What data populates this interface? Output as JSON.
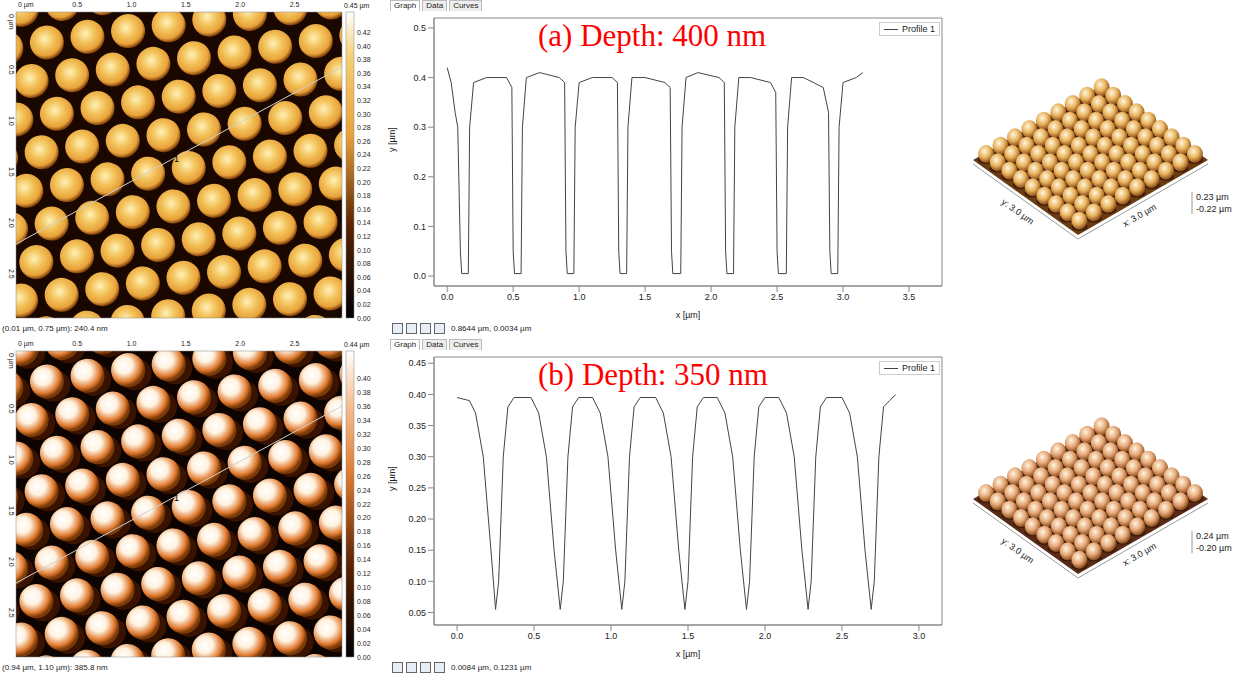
{
  "chart_data": [
    {
      "type": "line",
      "title": "(a) Depth: 400 nm",
      "x_label": "x [µm]",
      "y_label": "y [µm]",
      "legend": "top right",
      "xlim": [
        -0.1,
        3.75
      ],
      "xticks": [
        {
          "value": 0,
          "label": "0.0"
        },
        0.5,
        {
          "value": 1,
          "label": "1.0"
        },
        1.5,
        {
          "value": 2,
          "label": "2.0"
        },
        2.5,
        {
          "value": 3,
          "label": "3.0"
        },
        3.5
      ],
      "ylim": [
        -0.02,
        0.52
      ],
      "yticks": [
        {
          "value": 0,
          "label": "0.0"
        },
        0.1,
        0.2,
        0.3,
        0.4,
        0.5
      ],
      "x": [
        0,
        0.03,
        0.06,
        0.08,
        0.1,
        0.11,
        0.16,
        0.17,
        0.2,
        0.3,
        0.45,
        0.49,
        0.5,
        0.51,
        0.56,
        0.57,
        0.6,
        0.7,
        0.85,
        0.89,
        0.9,
        0.91,
        0.96,
        0.97,
        1.0,
        1.1,
        1.25,
        1.29,
        1.3,
        1.31,
        1.36,
        1.37,
        1.4,
        1.5,
        1.65,
        1.69,
        1.7,
        1.71,
        1.77,
        1.78,
        1.81,
        1.9,
        2.06,
        2.1,
        2.11,
        2.12,
        2.17,
        2.18,
        2.21,
        2.3,
        2.45,
        2.49,
        2.5,
        2.51,
        2.57,
        2.58,
        2.61,
        2.7,
        2.85,
        2.89,
        2.9,
        2.91,
        2.96,
        2.97,
        3.0,
        3.1,
        3.15
      ],
      "series": [
        {
          "name": "Profile 1",
          "color": "#444444",
          "values": [
            0.42,
            0.39,
            0.33,
            0.3,
            0.05,
            0.005,
            0.005,
            0.3,
            0.39,
            0.4,
            0.4,
            0.38,
            0.05,
            0.005,
            0.005,
            0.3,
            0.4,
            0.41,
            0.4,
            0.39,
            0.05,
            0.005,
            0.005,
            0.3,
            0.39,
            0.4,
            0.4,
            0.39,
            0.05,
            0.005,
            0.005,
            0.3,
            0.4,
            0.4,
            0.39,
            0.38,
            0.05,
            0.005,
            0.005,
            0.3,
            0.4,
            0.41,
            0.4,
            0.39,
            0.05,
            0.005,
            0.005,
            0.3,
            0.4,
            0.4,
            0.39,
            0.37,
            0.05,
            0.005,
            0.005,
            0.3,
            0.4,
            0.4,
            0.38,
            0.33,
            0.05,
            0.005,
            0.005,
            0.3,
            0.39,
            0.4,
            0.41
          ]
        }
      ],
      "status": "0.8644 µm, 0.0034 µm"
    },
    {
      "type": "line",
      "title": "(b) Depth: 350 nm",
      "x_label": "x [µm]",
      "y_label": "y [µm]",
      "legend": "top right",
      "xlim": [
        -0.15,
        3.15
      ],
      "xticks": [
        {
          "value": 0,
          "label": "0.0"
        },
        0.5,
        {
          "value": 1,
          "label": "1.0"
        },
        1.5,
        {
          "value": 2,
          "label": "2.0"
        },
        2.5,
        {
          "value": 3,
          "label": "3.0"
        }
      ],
      "ylim": [
        0.03,
        0.46
      ],
      "yticks": [
        0.05,
        {
          "value": 0.1,
          "label": "0.10"
        },
        0.15,
        {
          "value": 0.2,
          "label": "0.20"
        },
        0.25,
        {
          "value": 0.3,
          "label": "0.30"
        },
        0.35,
        {
          "value": 0.4,
          "label": "0.40"
        },
        0.45
      ],
      "x": [
        0,
        0.08,
        0.12,
        0.17,
        0.22,
        0.25,
        0.27,
        0.3,
        0.33,
        0.37,
        0.48,
        0.53,
        0.58,
        0.63,
        0.67,
        0.69,
        0.72,
        0.75,
        0.79,
        0.88,
        0.93,
        0.98,
        1.03,
        1.07,
        1.09,
        1.12,
        1.15,
        1.19,
        1.29,
        1.34,
        1.39,
        1.44,
        1.48,
        1.5,
        1.53,
        1.56,
        1.6,
        1.69,
        1.74,
        1.79,
        1.84,
        1.88,
        1.9,
        1.93,
        1.96,
        2.0,
        2.09,
        2.14,
        2.19,
        2.24,
        2.28,
        2.3,
        2.33,
        2.36,
        2.4,
        2.5,
        2.55,
        2.6,
        2.65,
        2.69,
        2.71,
        2.74,
        2.77,
        2.81,
        2.85
      ],
      "series": [
        {
          "name": "Profile 1",
          "color": "#444444",
          "values": [
            0.395,
            0.39,
            0.37,
            0.3,
            0.15,
            0.055,
            0.1,
            0.3,
            0.38,
            0.395,
            0.395,
            0.37,
            0.3,
            0.15,
            0.055,
            0.1,
            0.3,
            0.38,
            0.395,
            0.395,
            0.37,
            0.3,
            0.15,
            0.055,
            0.1,
            0.3,
            0.38,
            0.395,
            0.395,
            0.37,
            0.3,
            0.15,
            0.055,
            0.1,
            0.3,
            0.38,
            0.395,
            0.395,
            0.37,
            0.3,
            0.15,
            0.055,
            0.1,
            0.3,
            0.38,
            0.395,
            0.395,
            0.37,
            0.3,
            0.15,
            0.055,
            0.1,
            0.3,
            0.38,
            0.395,
            0.395,
            0.37,
            0.3,
            0.15,
            0.055,
            0.1,
            0.3,
            0.38,
            0.39,
            0.4
          ]
        }
      ],
      "status": "0.0084 µm, 0.1231 µm"
    }
  ],
  "tabs": [
    "Graph",
    "Data",
    "Curves"
  ],
  "images": [
    {
      "extent": [
        0,
        3
      ],
      "axis_ticks": [
        {
          "value": 0,
          "label": "0 µm"
        },
        0.5,
        {
          "value": 1,
          "label": "1.0"
        },
        1.5,
        {
          "value": 2,
          "label": "2.0"
        },
        2.5
      ],
      "profile_marker": "1",
      "status": "(0.01 µm, 0.75 µm): 240.4 nm",
      "color": "#e8a23a",
      "colorbar": {
        "range": [
          0,
          0.45
        ],
        "max_label": "0.45 µm",
        "ticks": [
          {
            "value": 0,
            "label": "0.00"
          },
          0.02,
          0.04,
          0.06,
          0.08,
          {
            "value": 0.1,
            "label": "0.10"
          },
          0.12,
          0.14,
          0.16,
          0.18,
          {
            "value": 0.2,
            "label": "0.20"
          },
          0.22,
          0.24,
          0.26,
          0.28,
          {
            "value": 0.3,
            "label": "0.30"
          },
          0.32,
          0.34,
          0.36,
          0.38,
          {
            "value": 0.4,
            "label": "0.40"
          },
          0.42
        ]
      }
    },
    {
      "extent": [
        0,
        3
      ],
      "axis_ticks": [
        {
          "value": 0,
          "label": "0 µm"
        },
        0.5,
        {
          "value": 1,
          "label": "1.0"
        },
        1.5,
        {
          "value": 2,
          "label": "2.0"
        },
        2.5
      ],
      "profile_marker": "1",
      "status": "(0.94 µm, 1.10 µm): 385.8 nm",
      "color": "#e07a30",
      "colorbar": {
        "range": [
          0,
          0.44
        ],
        "max_label": "0.44 µm",
        "ticks": [
          {
            "value": 0,
            "label": "0.00"
          },
          0.02,
          0.04,
          0.06,
          0.08,
          {
            "value": 0.1,
            "label": "0.10"
          },
          0.12,
          0.14,
          0.16,
          0.18,
          {
            "value": 0.2,
            "label": "0.20"
          },
          0.22,
          0.24,
          0.26,
          0.28,
          {
            "value": 0.3,
            "label": "0.30"
          },
          0.32,
          0.34,
          0.36,
          0.38,
          {
            "value": 0.4,
            "label": "0.40"
          }
        ]
      }
    }
  ],
  "views_3d": [
    {
      "x_label": "x: 3.0 µm",
      "y_label": "y: 3.0 µm",
      "z_labels": [
        "0.23 µm",
        "-0.22 µm"
      ],
      "color": "#e8b25a"
    },
    {
      "x_label": "x: 3.0 µm",
      "y_label": "y: 3.0 µm",
      "z_labels": [
        "0.24 µm",
        "-0.20 µm"
      ],
      "color": "#e6a878"
    }
  ]
}
